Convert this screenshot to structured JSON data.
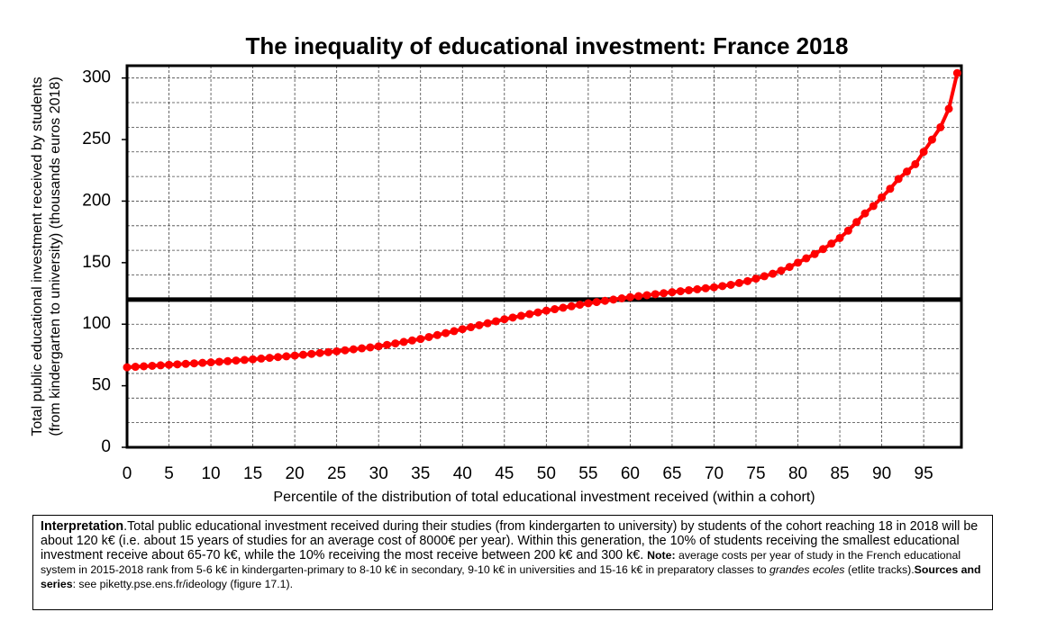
{
  "chart_data": {
    "type": "line",
    "title": "The inequality of educational investment: France 2018",
    "ylabel": [
      "Total public educational investment received by students",
      "(from kindergarten to university) (thousands euros 2018)"
    ],
    "xlabel": "Percentile of the distribution of total educational investment received (within a cohort)",
    "x": [
      0,
      1,
      2,
      3,
      4,
      5,
      6,
      7,
      8,
      9,
      10,
      11,
      12,
      13,
      14,
      15,
      16,
      17,
      18,
      19,
      20,
      21,
      22,
      23,
      24,
      25,
      26,
      27,
      28,
      29,
      30,
      31,
      32,
      33,
      34,
      35,
      36,
      37,
      38,
      39,
      40,
      41,
      42,
      43,
      44,
      45,
      46,
      47,
      48,
      49,
      50,
      51,
      52,
      53,
      54,
      55,
      56,
      57,
      58,
      59,
      60,
      61,
      62,
      63,
      64,
      65,
      66,
      67,
      68,
      69,
      70,
      71,
      72,
      73,
      74,
      75,
      76,
      77,
      78,
      79,
      80,
      81,
      82,
      83,
      84,
      85,
      86,
      87,
      88,
      89,
      90,
      91,
      92,
      93,
      94,
      95,
      96,
      97,
      98,
      99
    ],
    "series": [
      {
        "color": "#ff0000",
        "values": [
          65,
          65.4,
          65.8,
          66.2,
          66.6,
          67,
          67.4,
          67.8,
          68.2,
          68.6,
          69,
          69.5,
          70,
          70.5,
          71,
          71.5,
          72.1,
          72.7,
          73.3,
          73.9,
          74.5,
          75.2,
          75.9,
          76.6,
          77.3,
          78,
          78.8,
          79.6,
          80.4,
          81.2,
          82,
          83.2,
          84.4,
          85.6,
          86.8,
          88,
          89.6,
          91.2,
          92.8,
          94.4,
          96,
          97.6,
          99.2,
          100.8,
          102.4,
          104,
          105.4,
          106.8,
          108.2,
          109.6,
          111,
          112.2,
          113.4,
          114.6,
          115.8,
          117,
          118,
          119,
          120,
          121,
          122,
          122.8,
          123.6,
          124.4,
          125.2,
          126,
          126.8,
          127.6,
          128.4,
          129.2,
          130,
          131,
          132,
          133.5,
          135,
          137,
          139,
          141,
          143.5,
          146.5,
          150,
          153.5,
          157,
          161,
          165.5,
          170,
          176,
          183,
          190,
          196,
          203,
          210,
          218,
          224,
          230,
          240,
          250,
          260,
          275,
          304
        ]
      }
    ],
    "reference_line": 120,
    "xlim": [
      0,
      99.5
    ],
    "ylim": [
      0,
      310
    ],
    "xticks": [
      0,
      5,
      10,
      15,
      20,
      25,
      30,
      35,
      40,
      45,
      50,
      55,
      60,
      65,
      70,
      75,
      80,
      85,
      90,
      95
    ],
    "yticks": [
      0,
      50,
      100,
      150,
      200,
      250,
      300
    ],
    "y_grid_lines": [
      20,
      40,
      60,
      80,
      100,
      120,
      140,
      160,
      180,
      200,
      220,
      240,
      260,
      280,
      300
    ],
    "grid": true,
    "annotation": [
      "Interpretation",
      ".Total public educational investment received during their studies (from kindergarten to university) by students of the cohort reaching 18 in 2018 will be about 120 k€ (i.e. about 15 years of studies for an average cost of 8000€ per year). Within this generation, the 10% of students receiving the smallest educational investment receive about 65-70 k€, while the 10% receiving the most receive between 200 k€ and 300 k€. ",
      "Note:",
      " average costs per year of study in the French educational system in 2015-2018 rank from 5-6 k€ in kindergarten-primary to 8-10 k€ in secondary, 9-10 k€ in universities and 15-16 k€ in preparatory classes to ",
      "grandes ecoles",
      " (etlite tracks).",
      "Sources and series",
      ": see piketty.pse.ens.fr/ideology (figure 17.1)."
    ]
  }
}
